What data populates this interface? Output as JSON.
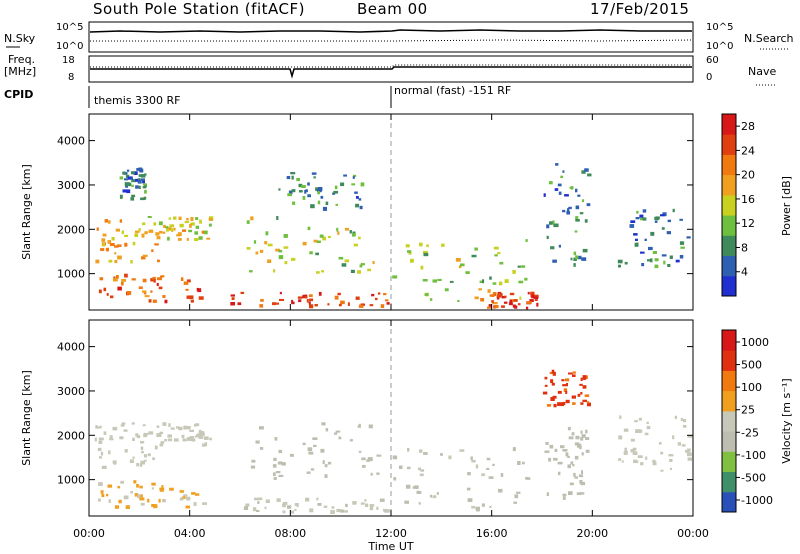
{
  "header": {
    "station": "South Pole Station (fitACF)",
    "beam": "Beam 00",
    "date": "17/Feb/2015"
  },
  "top_panels": {
    "nsky_label": "N.Sky",
    "nsky_ticks": [
      "10^5",
      "10^0"
    ],
    "nsearch_label": "N.Search",
    "nsearch_ticks": [
      "10^5",
      "10^0"
    ],
    "freq_label": "Freq.",
    "freq_unit": "[MHz]",
    "freq_ticks": [
      "18",
      "8"
    ],
    "nave_label": "Nave",
    "nave_ticks": [
      "60",
      "0"
    ],
    "cpid_label": "CPID",
    "cpid_left": "themis 3300 RF",
    "cpid_right": "normal (fast) -151 RF"
  },
  "colors": {
    "power_scale": [
      "#1f2fd0",
      "#2f5fb0",
      "#3f8a5a",
      "#6fbf3f",
      "#c8d020",
      "#f0a020",
      "#f07a10",
      "#e04010",
      "#d81818"
    ],
    "velocity_scale": [
      "#2850b8",
      "#3f8f6a",
      "#7fc040",
      "#bdbdb0",
      "#c8c8b8",
      "#f0a020",
      "#f07a10",
      "#e03010",
      "#d81818"
    ],
    "accent_line": "#000000"
  },
  "chart_data": [
    {
      "type": "heatmap",
      "title": "",
      "xlabel": "Time UT",
      "ylabel": "Slant Range [km]",
      "x_ticks": [
        "00:00",
        "04:00",
        "08:00",
        "12:00",
        "16:00",
        "20:00",
        "00:00"
      ],
      "y_ticks": [
        "1000",
        "2000",
        "3000",
        "4000"
      ],
      "xlim_hours": [
        0,
        24
      ],
      "ylim_km": [
        180,
        4600
      ],
      "colorbar": {
        "label": "Power [dB]",
        "ticks": [
          "4",
          "8",
          "12",
          "16",
          "20",
          "24",
          "28"
        ],
        "range": [
          0,
          30
        ]
      },
      "features": [
        {
          "t0": 0.2,
          "t1": 2.8,
          "r0": 1300,
          "r1": 2300,
          "value": 18
        },
        {
          "t0": 0.2,
          "t1": 4.5,
          "r0": 400,
          "r1": 1000,
          "value": 24
        },
        {
          "t0": 1.2,
          "t1": 2.2,
          "r0": 2700,
          "r1": 3400,
          "value": 6
        },
        {
          "t0": 2.5,
          "t1": 4.8,
          "r0": 1800,
          "r1": 2300,
          "value": 16
        },
        {
          "t0": 5.5,
          "t1": 12.0,
          "r0": 300,
          "r1": 600,
          "value": 26
        },
        {
          "t0": 6.2,
          "t1": 11.5,
          "r0": 1000,
          "r1": 2300,
          "value": 14
        },
        {
          "t0": 7.5,
          "t1": 10.8,
          "r0": 2500,
          "r1": 3300,
          "value": 8
        },
        {
          "t0": 12.0,
          "t1": 17.5,
          "r0": 300,
          "r1": 1800,
          "value": 14
        },
        {
          "t0": 15.5,
          "t1": 17.8,
          "r0": 250,
          "r1": 600,
          "value": 26
        },
        {
          "t0": 18.0,
          "t1": 19.8,
          "r0": 1200,
          "r1": 3500,
          "value": 8
        },
        {
          "t0": 21.0,
          "t1": 23.8,
          "r0": 1200,
          "r1": 2500,
          "value": 6
        }
      ]
    },
    {
      "type": "heatmap",
      "title": "",
      "xlabel": "Time UT",
      "ylabel": "Slant Range [km]",
      "x_ticks": [
        "00:00",
        "04:00",
        "08:00",
        "12:00",
        "16:00",
        "20:00",
        "00:00"
      ],
      "y_ticks": [
        "1000",
        "2000",
        "3000",
        "4000"
      ],
      "xlim_hours": [
        0,
        24
      ],
      "ylim_km": [
        180,
        4600
      ],
      "colorbar": {
        "label": "Velocity [m s⁻¹]",
        "ticks": [
          "1000",
          "500",
          "100",
          "25",
          "-25",
          "-100",
          "-500",
          "-1000"
        ],
        "range": [
          -1000,
          1000
        ]
      },
      "features": [
        {
          "t0": 0.2,
          "t1": 2.8,
          "r0": 1300,
          "r1": 2300,
          "value": 0
        },
        {
          "t0": 0.2,
          "t1": 4.5,
          "r0": 400,
          "r1": 1000,
          "value": 150
        },
        {
          "t0": 2.5,
          "t1": 4.8,
          "r0": 1800,
          "r1": 2300,
          "value": 10
        },
        {
          "t0": 5.5,
          "t1": 12.0,
          "r0": 300,
          "r1": 600,
          "value": -80
        },
        {
          "t0": 6.2,
          "t1": 11.5,
          "r0": 1000,
          "r1": 2300,
          "value": -200
        },
        {
          "t0": 12.0,
          "t1": 17.5,
          "r0": 300,
          "r1": 1800,
          "value": -150
        },
        {
          "t0": 18.0,
          "t1": 19.8,
          "r0": 2700,
          "r1": 3500,
          "value": 600
        },
        {
          "t0": 18.0,
          "t1": 19.8,
          "r0": 600,
          "r1": 2200,
          "value": -200
        },
        {
          "t0": 21.0,
          "t1": 23.8,
          "r0": 1200,
          "r1": 2500,
          "value": 0
        }
      ]
    }
  ]
}
